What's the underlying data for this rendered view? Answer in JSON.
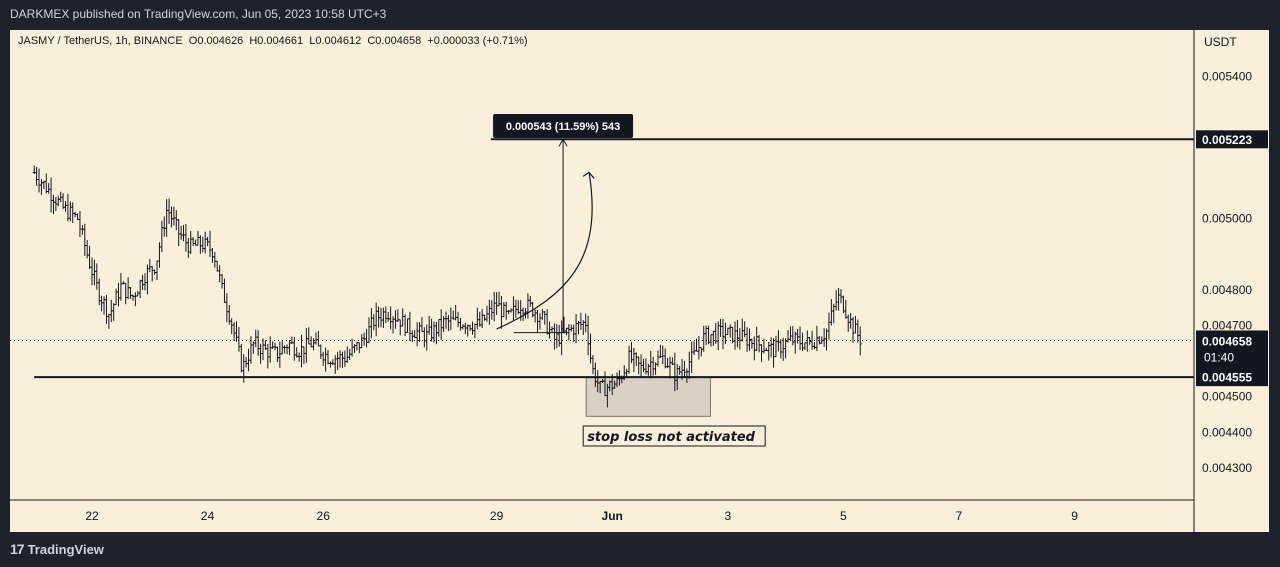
{
  "header": {
    "published_line": "DARKMEX published on TradingView.com, Jun 05, 2023 10:58 UTC+3",
    "legend_line": "JASMY / TetherUS, 1h, BINANCE  O0.004626  H0.004661  L0.004612  C0.004658  +0.000033 (+0.71%)"
  },
  "footer": {
    "logo_mark": "17",
    "logo_text": "TradingView"
  },
  "colors": {
    "background": "#faefd9",
    "candles": "#131722",
    "frame": "#1e222d",
    "box_fill": "#d9d2c4"
  },
  "chart_data": {
    "type": "candlestick",
    "symbol": "JASMY / TetherUS",
    "timeframe": "1h",
    "exchange": "BINANCE",
    "currency_label": "USDT",
    "ylim": [
      0.00421,
      0.00553
    ],
    "y_ticks": [
      {
        "value": 0.0054,
        "label": "0.005400"
      },
      {
        "value": 0.005,
        "label": "0.005000"
      },
      {
        "value": 0.0048,
        "label": "0.004800"
      },
      {
        "value": 0.0047,
        "label": "0.004700"
      },
      {
        "value": 0.0045,
        "label": "0.004500"
      },
      {
        "value": 0.0044,
        "label": "0.004400"
      },
      {
        "value": 0.0043,
        "label": "0.004300"
      }
    ],
    "x_ticks": [
      {
        "day": 22,
        "label": "22"
      },
      {
        "day": 24,
        "label": "24"
      },
      {
        "day": 26,
        "label": "26"
      },
      {
        "day": 29,
        "label": "29"
      },
      {
        "day": 31,
        "label": "Jun"
      },
      {
        "day": 33,
        "label": "3"
      },
      {
        "day": 35,
        "label": "5"
      },
      {
        "day": 37,
        "label": "7"
      },
      {
        "day": 39,
        "label": "9"
      }
    ],
    "price_path": [
      [
        21.0,
        0.00513
      ],
      [
        21.25,
        0.00508
      ],
      [
        21.5,
        0.00503
      ],
      [
        21.75,
        0.005
      ],
      [
        21.95,
        0.00488
      ],
      [
        22.1,
        0.0048
      ],
      [
        22.3,
        0.00473
      ],
      [
        22.5,
        0.00481
      ],
      [
        22.7,
        0.00478
      ],
      [
        22.9,
        0.00484
      ],
      [
        23.1,
        0.00487
      ],
      [
        23.3,
        0.00503
      ],
      [
        23.5,
        0.00496
      ],
      [
        23.7,
        0.00492
      ],
      [
        23.9,
        0.00493
      ],
      [
        24.1,
        0.00491
      ],
      [
        24.25,
        0.0048
      ],
      [
        24.4,
        0.00472
      ],
      [
        24.6,
        0.00458
      ],
      [
        24.8,
        0.00465
      ],
      [
        25.0,
        0.00463
      ],
      [
        25.2,
        0.00462
      ],
      [
        25.4,
        0.00465
      ],
      [
        25.6,
        0.00463
      ],
      [
        25.8,
        0.00465
      ],
      [
        26.1,
        0.00461
      ],
      [
        26.4,
        0.00461
      ],
      [
        26.7,
        0.00466
      ],
      [
        26.9,
        0.00472
      ],
      [
        27.1,
        0.00474
      ],
      [
        27.3,
        0.00472
      ],
      [
        27.5,
        0.00469
      ],
      [
        27.8,
        0.00467
      ],
      [
        28.1,
        0.00471
      ],
      [
        28.4,
        0.00471
      ],
      [
        28.7,
        0.0047
      ],
      [
        29.0,
        0.00476
      ],
      [
        29.2,
        0.00472
      ],
      [
        29.4,
        0.00476
      ],
      [
        29.6,
        0.00475
      ],
      [
        29.8,
        0.00472
      ],
      [
        30.0,
        0.00466
      ],
      [
        30.3,
        0.00469
      ],
      [
        30.55,
        0.00471
      ],
      [
        30.65,
        0.00458
      ],
      [
        30.8,
        0.00452
      ],
      [
        31.1,
        0.00454
      ],
      [
        31.3,
        0.00461
      ],
      [
        31.5,
        0.00458
      ],
      [
        31.7,
        0.0046
      ],
      [
        31.9,
        0.00461
      ],
      [
        32.1,
        0.00456
      ],
      [
        32.4,
        0.00461
      ],
      [
        32.6,
        0.00467
      ],
      [
        32.9,
        0.00468
      ],
      [
        33.2,
        0.00467
      ],
      [
        33.5,
        0.00465
      ],
      [
        33.8,
        0.00463
      ],
      [
        34.1,
        0.00466
      ],
      [
        34.4,
        0.00465
      ],
      [
        34.7,
        0.00468
      ],
      [
        34.9,
        0.00478
      ],
      [
        35.0,
        0.00476
      ],
      [
        35.15,
        0.0047
      ],
      [
        35.3,
        0.00466
      ]
    ],
    "last_price": 0.004658,
    "last_price_label": "0.004658",
    "countdown": "01:40",
    "levels": [
      {
        "name": "target",
        "value": 0.005223,
        "label": "0.005223",
        "from_day": 28.9
      },
      {
        "name": "support",
        "value": 0.004555,
        "label": "0.004555",
        "from_day": 21.0
      }
    ],
    "measure": {
      "label": "0.000543 (11.59%) 543",
      "day": 30.15,
      "from": 0.00468,
      "to": 0.005223
    },
    "stop_box": {
      "day_start": 30.55,
      "day_end": 32.7,
      "top": 0.004555,
      "bottom": 0.004445
    },
    "annotation": "stop loss not activated"
  }
}
